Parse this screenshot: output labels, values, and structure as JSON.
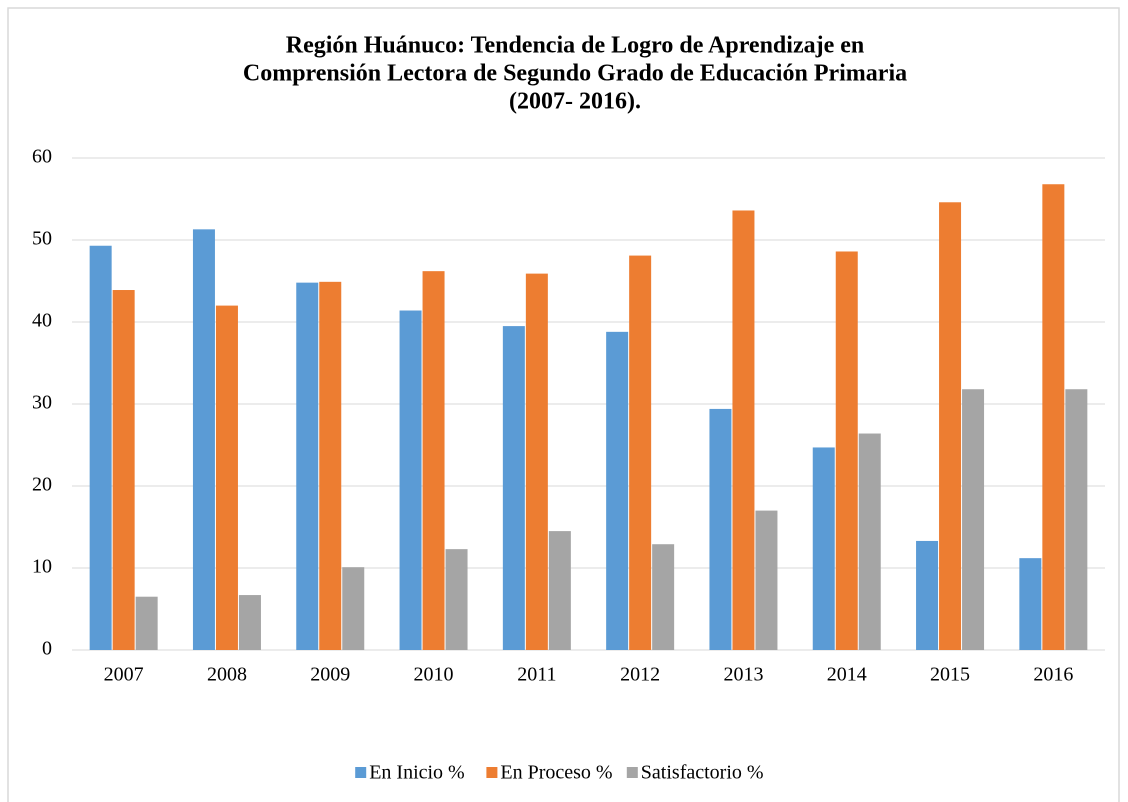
{
  "chart_data": {
    "type": "bar",
    "title": [
      "Región Huánuco: Tendencia de Logro de Aprendizaje en",
      "Comprensión Lectora de Segundo Grado de Educación Primaria",
      "(2007- 2016)."
    ],
    "categories": [
      "2007",
      "2008",
      "2009",
      "2010",
      "2011",
      "2012",
      "2013",
      "2014",
      "2015",
      "2016"
    ],
    "series": [
      {
        "name": "En Inicio %",
        "color": "#5b9bd5",
        "values": [
          49.3,
          51.3,
          44.8,
          41.4,
          39.5,
          38.8,
          29.4,
          24.7,
          13.3,
          11.2
        ]
      },
      {
        "name": "En Proceso %",
        "color": "#ed7d31",
        "values": [
          43.9,
          42.0,
          44.9,
          46.2,
          45.9,
          48.1,
          53.6,
          48.6,
          54.6,
          56.8
        ]
      },
      {
        "name": "Satisfactorio %",
        "color": "#a5a5a5",
        "values": [
          6.5,
          6.7,
          10.1,
          12.3,
          14.5,
          12.9,
          17.0,
          26.4,
          31.8,
          31.8
        ]
      }
    ],
    "ylim": [
      0,
      60
    ],
    "yticks": [
      0,
      10,
      20,
      30,
      40,
      50,
      60
    ],
    "grid": true,
    "legend": "bottom"
  }
}
